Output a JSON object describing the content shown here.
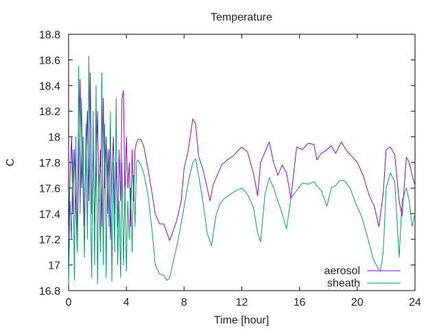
{
  "chart_data": {
    "type": "line",
    "title": "Temperature",
    "xlabel": "Time [hour]",
    "ylabel": "C",
    "xlim": [
      0,
      24
    ],
    "ylim": [
      16.8,
      18.8
    ],
    "xticks": [
      0,
      4,
      8,
      12,
      16,
      20,
      24
    ],
    "yticks": [
      16.8,
      17,
      17.2,
      17.4,
      17.6,
      17.8,
      18,
      18.2,
      18.4,
      18.6,
      18.8
    ],
    "xtick_labels": [
      "0",
      "4",
      "8",
      "12",
      "16",
      "20",
      "24"
    ],
    "ytick_labels": [
      "16.8",
      "17",
      "17.2",
      "17.4",
      "17.6",
      "17.8",
      "18",
      "18.2",
      "18.4",
      "18.6",
      "18.8"
    ],
    "grid": false,
    "legend_position": "bottom-right",
    "series": [
      {
        "name": "aerosol",
        "color": "#9400d3",
        "x": [
          0,
          0.1,
          0.2,
          0.3,
          0.4,
          0.5,
          0.6,
          0.7,
          0.8,
          0.9,
          1.0,
          1.1,
          1.2,
          1.3,
          1.4,
          1.5,
          1.6,
          1.7,
          1.8,
          1.9,
          2.0,
          2.1,
          2.2,
          2.3,
          2.4,
          2.5,
          2.6,
          2.7,
          2.8,
          2.9,
          3.0,
          3.1,
          3.2,
          3.3,
          3.4,
          3.5,
          3.6,
          3.7,
          3.8,
          3.9,
          4.0,
          4.1,
          4.2,
          4.3,
          4.4,
          4.5,
          4.6,
          4.7,
          4.8,
          5.0,
          5.2,
          5.5,
          5.8,
          6.0,
          6.3,
          6.6,
          7.0,
          7.2,
          7.5,
          7.8,
          8.0,
          8.3,
          8.6,
          8.8,
          9.0,
          9.3,
          9.6,
          9.8,
          10.0,
          10.3,
          10.6,
          11.0,
          11.4,
          11.8,
          12.0,
          12.4,
          12.8,
          13.1,
          13.3,
          13.6,
          13.9,
          14.2,
          14.5,
          14.8,
          15.1,
          15.4,
          15.8,
          16.2,
          16.6,
          17.0,
          17.2,
          17.5,
          17.9,
          18.2,
          18.5,
          18.9,
          19.2,
          19.6,
          20.0,
          20.4,
          20.8,
          21.2,
          21.5,
          21.8,
          22.0,
          22.3,
          22.6,
          22.9,
          23.1,
          23.4,
          23.6,
          23.8,
          24.0
        ],
        "values": [
          17.2,
          17.7,
          18.0,
          17.4,
          17.9,
          17.5,
          17.1,
          17.8,
          18.45,
          17.6,
          18.0,
          17.3,
          17.8,
          18.2,
          17.5,
          18.5,
          17.4,
          17.9,
          17.3,
          17.7,
          18.2,
          17.5,
          17.9,
          17.3,
          18.3,
          17.6,
          18.0,
          17.4,
          17.9,
          17.2,
          17.7,
          18.0,
          17.4,
          17.8,
          17.3,
          17.9,
          17.5,
          18.3,
          18.36,
          17.5,
          18.0,
          17.6,
          17.8,
          17.3,
          17.9,
          17.5,
          17.9,
          17.95,
          17.98,
          17.98,
          17.93,
          17.75,
          17.55,
          17.4,
          17.32,
          17.32,
          17.19,
          17.25,
          17.35,
          17.5,
          17.75,
          17.9,
          18.14,
          18.1,
          17.85,
          17.75,
          17.6,
          17.5,
          17.62,
          17.7,
          17.78,
          17.82,
          17.85,
          17.9,
          17.92,
          17.88,
          17.72,
          17.54,
          17.8,
          17.88,
          17.96,
          17.8,
          17.7,
          17.78,
          17.72,
          17.52,
          17.92,
          17.9,
          17.95,
          17.94,
          17.82,
          17.87,
          17.9,
          17.93,
          17.87,
          17.96,
          17.9,
          17.85,
          17.8,
          17.7,
          17.55,
          17.45,
          17.3,
          17.56,
          17.9,
          17.92,
          17.86,
          17.5,
          17.38,
          17.84,
          17.8,
          17.7,
          17.62
        ]
      },
      {
        "name": "sheath",
        "color": "#009e73",
        "x": [
          0,
          0.1,
          0.2,
          0.3,
          0.4,
          0.5,
          0.6,
          0.7,
          0.8,
          0.9,
          1.0,
          1.1,
          1.2,
          1.3,
          1.4,
          1.5,
          1.6,
          1.7,
          1.8,
          1.9,
          2.0,
          2.1,
          2.2,
          2.3,
          2.4,
          2.5,
          2.6,
          2.7,
          2.8,
          2.9,
          3.0,
          3.1,
          3.2,
          3.3,
          3.4,
          3.5,
          3.6,
          3.7,
          3.8,
          3.9,
          4.0,
          4.1,
          4.2,
          4.3,
          4.4,
          4.5,
          4.6,
          4.7,
          4.8,
          5.0,
          5.2,
          5.5,
          5.8,
          6.0,
          6.3,
          6.6,
          6.8,
          7.0,
          7.3,
          7.6,
          8.0,
          8.3,
          8.6,
          8.8,
          9.0,
          9.3,
          9.6,
          9.9,
          10.2,
          10.5,
          10.8,
          11.2,
          11.6,
          12.0,
          12.4,
          12.8,
          13.1,
          13.3,
          13.6,
          13.9,
          14.2,
          14.5,
          14.8,
          15.1,
          15.4,
          15.8,
          16.2,
          16.6,
          17.0,
          17.2,
          17.5,
          17.9,
          18.2,
          18.5,
          18.8,
          19.1,
          19.5,
          19.9,
          20.3,
          20.7,
          21.1,
          21.4,
          21.6,
          21.8,
          22.0,
          22.3,
          22.6,
          22.9,
          23.1,
          23.4,
          23.6,
          23.8,
          24.0
        ],
        "values": [
          16.85,
          17.5,
          17.2,
          17.9,
          16.88,
          18.0,
          17.1,
          18.55,
          17.4,
          18.3,
          17.6,
          17.06,
          18.1,
          17.2,
          18.63,
          17.5,
          16.9,
          18.2,
          17.0,
          18.4,
          16.85,
          17.7,
          17.1,
          18.5,
          17.0,
          18.1,
          16.9,
          17.9,
          17.3,
          18.2,
          16.87,
          17.8,
          17.1,
          18.3,
          17.0,
          17.5,
          16.9,
          17.8,
          17.0,
          17.6,
          16.95,
          17.5,
          17.2,
          17.6,
          17.1,
          17.7,
          17.3,
          17.8,
          17.82,
          17.78,
          17.72,
          17.55,
          17.25,
          17.0,
          16.93,
          16.92,
          16.88,
          16.9,
          17.05,
          17.2,
          17.45,
          17.65,
          17.8,
          17.83,
          17.7,
          17.5,
          17.25,
          17.15,
          17.38,
          17.48,
          17.52,
          17.55,
          17.58,
          17.6,
          17.55,
          17.45,
          17.25,
          17.18,
          17.55,
          17.68,
          17.6,
          17.5,
          17.4,
          17.28,
          17.52,
          17.58,
          17.64,
          17.63,
          17.65,
          17.62,
          17.58,
          17.46,
          17.6,
          17.62,
          17.66,
          17.66,
          17.6,
          17.48,
          17.38,
          17.22,
          17.05,
          16.98,
          16.95,
          17.1,
          17.6,
          17.72,
          17.65,
          17.06,
          17.5,
          17.6,
          17.5,
          17.3,
          17.4
        ]
      }
    ]
  }
}
